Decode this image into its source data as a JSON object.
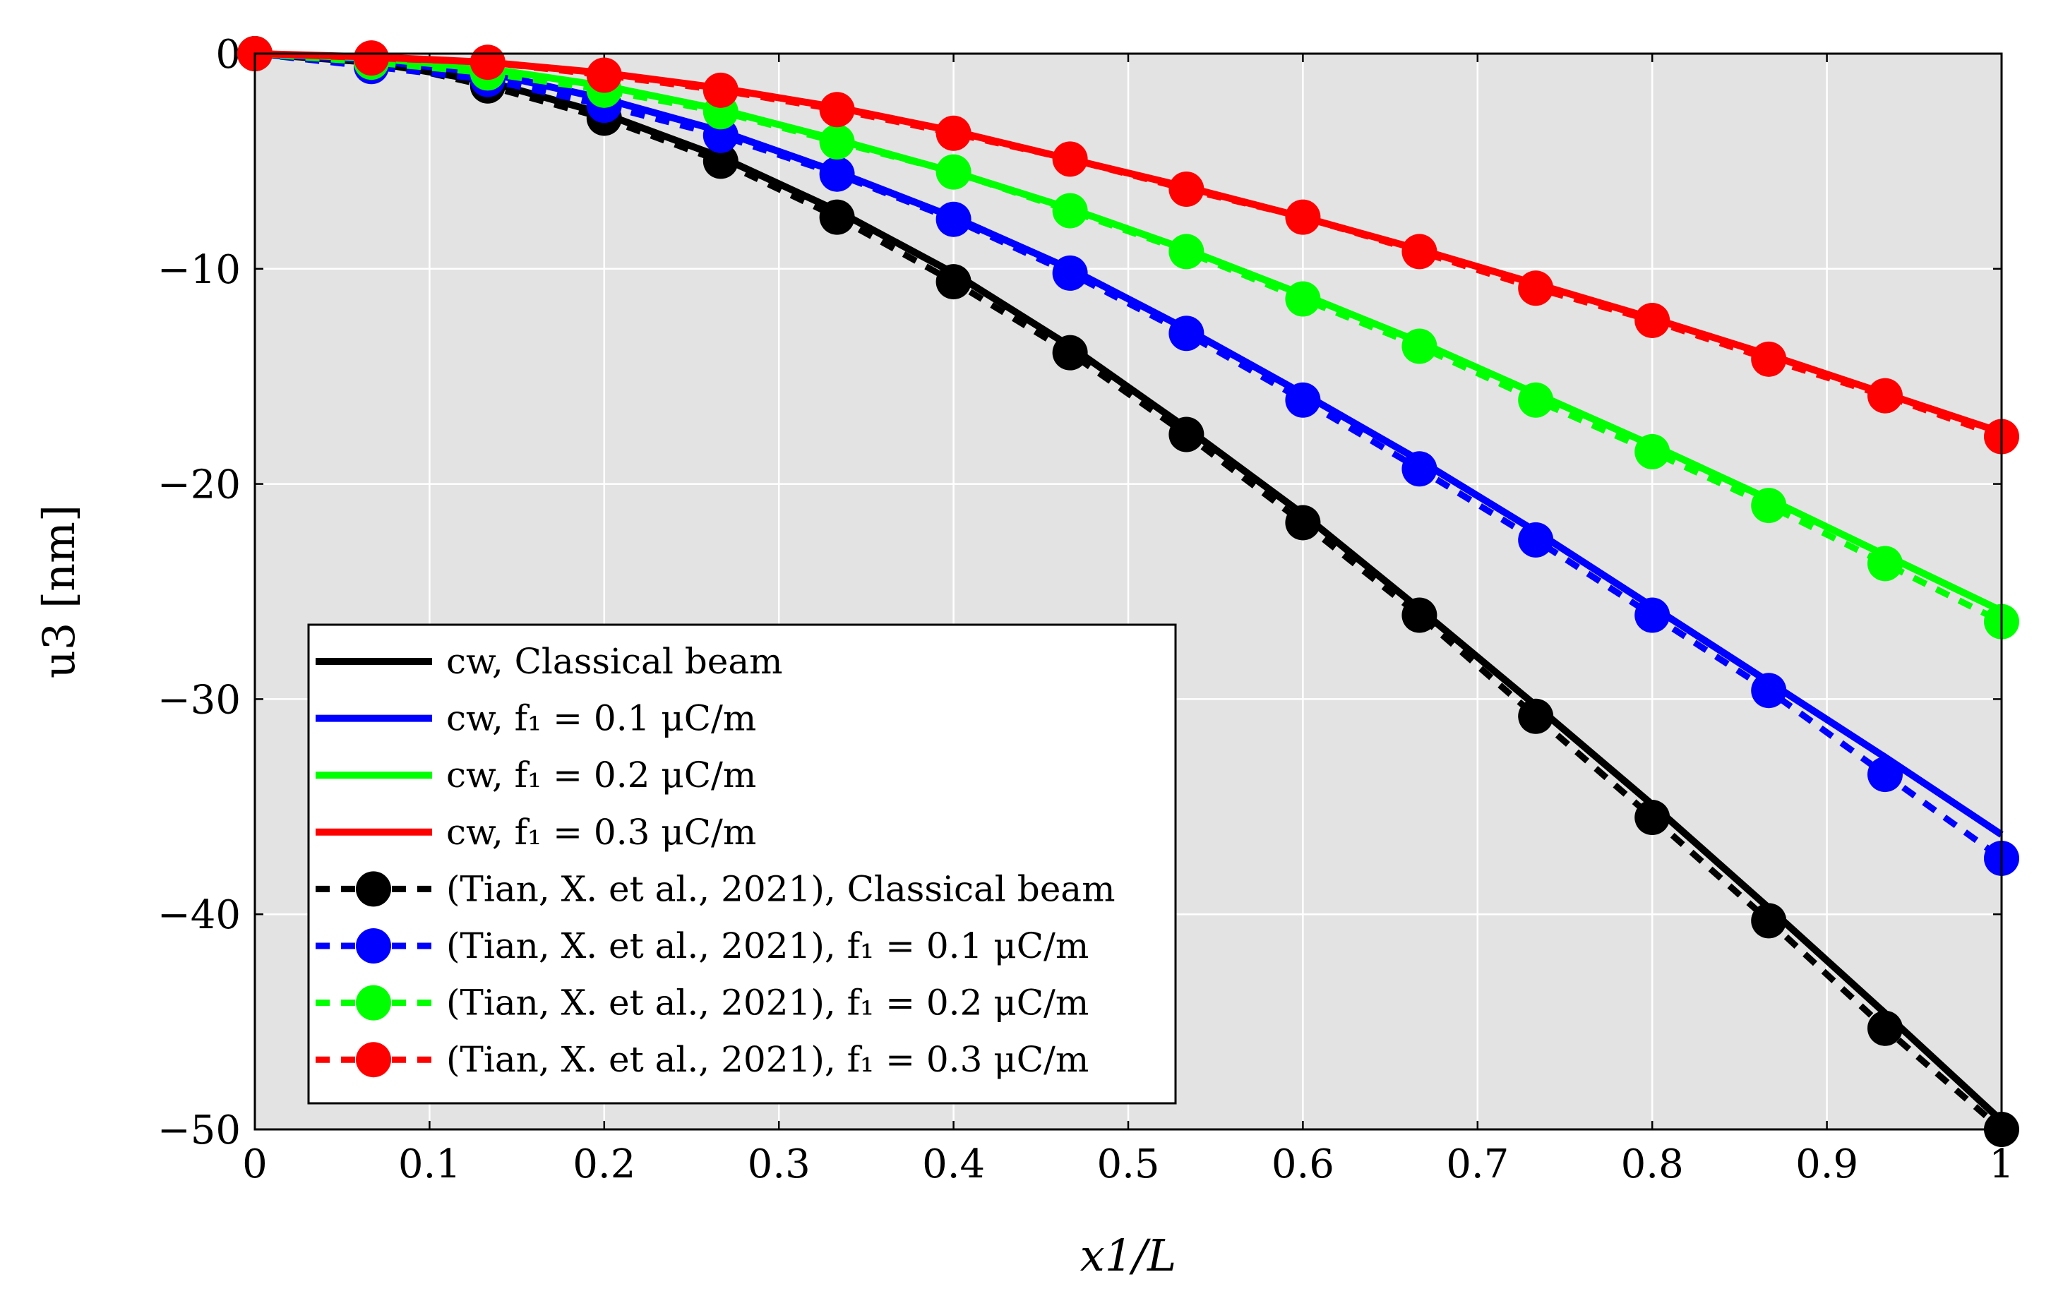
{
  "chart_data": {
    "type": "line",
    "title": "",
    "xlabel": "x1/L",
    "ylabel": "u3 [nm]",
    "xlim": [
      0,
      1
    ],
    "ylim": [
      -50,
      0
    ],
    "grid": true,
    "background": "#e3e3e3",
    "legend_position": "bottom-left",
    "xticks": [
      "0",
      "0.1",
      "0.2",
      "0.3",
      "0.4",
      "0.5",
      "0.6",
      "0.7",
      "0.8",
      "0.9",
      "1"
    ],
    "yticks": [
      "0",
      "−10",
      "−20",
      "−30",
      "−40",
      "−50"
    ],
    "series": [
      {
        "name": "cw, Classical beam",
        "label": "cw, Classical beam",
        "color": "#000000",
        "style": "solid",
        "markers": false,
        "x": [
          0,
          0.0667,
          0.1333,
          0.2,
          0.2667,
          0.3333,
          0.4,
          0.4667,
          0.5333,
          0.6,
          0.6667,
          0.7333,
          0.8,
          0.8667,
          0.9333,
          1
        ],
        "y": [
          0,
          -0.4,
          -1.3,
          -2.8,
          -4.8,
          -7.3,
          -10.2,
          -13.6,
          -17.4,
          -21.4,
          -25.8,
          -30.3,
          -34.9,
          -39.7,
          -44.6,
          -49.6
        ]
      },
      {
        "name": "cw, f1 = 0.1 μC/m",
        "label": "cw, f₁ = 0.1 μC/m",
        "color": "#0000ff",
        "style": "solid",
        "markers": false,
        "x": [
          0,
          0.0667,
          0.1333,
          0.2,
          0.2667,
          0.3333,
          0.4,
          0.4667,
          0.5333,
          0.6,
          0.6667,
          0.7333,
          0.8,
          0.8667,
          0.9333,
          1
        ],
        "y": [
          0,
          -0.3,
          -0.9,
          -2.1,
          -3.6,
          -5.5,
          -7.6,
          -10.0,
          -12.8,
          -15.8,
          -18.9,
          -22.2,
          -25.7,
          -29.2,
          -32.7,
          -36.3
        ]
      },
      {
        "name": "cw, f1 = 0.2 μC/m",
        "label": "cw, f₁ = 0.2 μC/m",
        "color": "#00ff00",
        "style": "solid",
        "markers": false,
        "x": [
          0,
          0.0667,
          0.1333,
          0.2,
          0.2667,
          0.3333,
          0.4,
          0.4667,
          0.5333,
          0.6,
          0.6667,
          0.7333,
          0.8,
          0.8667,
          0.9333,
          1
        ],
        "y": [
          0,
          -0.2,
          -0.7,
          -1.5,
          -2.6,
          -4.0,
          -5.5,
          -7.2,
          -9.1,
          -11.2,
          -13.4,
          -15.8,
          -18.2,
          -20.7,
          -23.3,
          -25.9
        ]
      },
      {
        "name": "cw, f1 = 0.3 μC/m",
        "label": "cw, f₁ = 0.3 μC/m",
        "color": "#ff0000",
        "style": "solid",
        "markers": false,
        "x": [
          0,
          0.0667,
          0.1333,
          0.2,
          0.2667,
          0.3333,
          0.4,
          0.4667,
          0.5333,
          0.6,
          0.6667,
          0.7333,
          0.8,
          0.8667,
          0.9333,
          1
        ],
        "y": [
          0,
          -0.15,
          -0.4,
          -0.9,
          -1.6,
          -2.5,
          -3.6,
          -4.9,
          -6.2,
          -7.6,
          -9.1,
          -10.7,
          -12.3,
          -14.0,
          -15.8,
          -17.6
        ]
      },
      {
        "name": "(Tian, X. et al., 2021), Classical beam",
        "label": "(Tian, X. et al., 2021), Classical beam",
        "color": "#000000",
        "style": "dashed",
        "markers": true,
        "x": [
          0,
          0.0667,
          0.1333,
          0.2,
          0.2667,
          0.3333,
          0.4,
          0.4667,
          0.5333,
          0.6,
          0.6667,
          0.7333,
          0.8,
          0.8667,
          0.9333,
          1
        ],
        "y": [
          0,
          -0.3,
          -1.5,
          -3.0,
          -5.0,
          -7.6,
          -10.6,
          -13.9,
          -17.7,
          -21.8,
          -26.1,
          -30.8,
          -35.5,
          -40.3,
          -45.3,
          -50.0
        ]
      },
      {
        "name": "(Tian, X. et al., 2021), f1 = 0.1 μC/m",
        "label": "(Tian, X. et al., 2021), f₁ = 0.1 μC/m",
        "color": "#0000ff",
        "style": "dashed",
        "markers": true,
        "x": [
          0,
          0.0667,
          0.1333,
          0.2,
          0.2667,
          0.3333,
          0.4,
          0.4667,
          0.5333,
          0.6,
          0.6667,
          0.7333,
          0.8,
          0.8667,
          0.9333,
          1
        ],
        "y": [
          0,
          -0.6,
          -1.2,
          -2.4,
          -3.8,
          -5.6,
          -7.7,
          -10.2,
          -13.0,
          -16.1,
          -19.3,
          -22.6,
          -26.1,
          -29.6,
          -33.5,
          -37.4
        ]
      },
      {
        "name": "(Tian, X. et al., 2021), f1 = 0.2 μC/m",
        "label": "(Tian, X. et al., 2021), f₁ = 0.2 μC/m",
        "color": "#00ff00",
        "style": "dashed",
        "markers": true,
        "x": [
          0,
          0.0667,
          0.1333,
          0.2,
          0.2667,
          0.3333,
          0.4,
          0.4667,
          0.5333,
          0.6,
          0.6667,
          0.7333,
          0.8,
          0.8667,
          0.9333,
          1
        ],
        "y": [
          0,
          -0.4,
          -0.9,
          -1.7,
          -2.7,
          -4.1,
          -5.5,
          -7.3,
          -9.2,
          -11.4,
          -13.6,
          -16.1,
          -18.5,
          -21.0,
          -23.7,
          -26.4
        ]
      },
      {
        "name": "(Tian, X. et al., 2021), f1 = 0.3 μC/m",
        "label": "(Tian, X. et al., 2021), f₁ = 0.3 μC/m",
        "color": "#ff0000",
        "style": "dashed",
        "markers": true,
        "x": [
          0,
          0.0667,
          0.1333,
          0.2,
          0.2667,
          0.3333,
          0.4,
          0.4667,
          0.5333,
          0.6,
          0.6667,
          0.7333,
          0.8,
          0.8667,
          0.9333,
          1
        ],
        "y": [
          0,
          -0.2,
          -0.4,
          -1.0,
          -1.7,
          -2.6,
          -3.7,
          -4.9,
          -6.3,
          -7.6,
          -9.2,
          -10.9,
          -12.4,
          -14.2,
          -15.9,
          -17.8
        ]
      }
    ]
  }
}
